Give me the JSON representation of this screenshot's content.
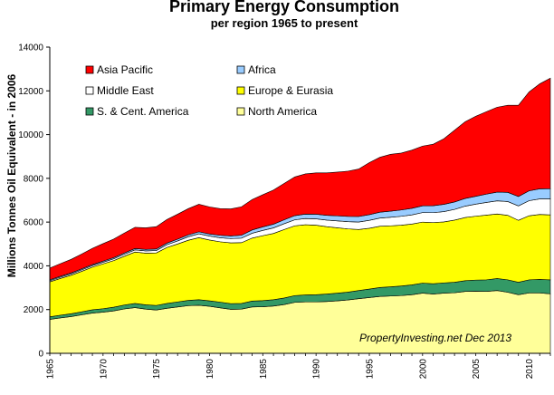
{
  "chart_data": {
    "type": "area",
    "stacked": true,
    "title": "Primary Energy Consumption",
    "subtitle": "per region 1965 to present",
    "ylabel": "Millions Tonnes Oil Equivalent  - in 2006",
    "xlabel": "",
    "ylim": [
      0,
      14000
    ],
    "yticks": [
      "0",
      "2000",
      "4000",
      "6000",
      "8000",
      "10000",
      "12000",
      "14000"
    ],
    "xlim": [
      1965,
      2012
    ],
    "xticks": [
      "1965",
      "1970",
      "1975",
      "1980",
      "1985",
      "1990",
      "1995",
      "2000",
      "2005",
      "2010"
    ],
    "grid": false,
    "legend_position": "top-left inside",
    "annotation": "PropertyInvesting.net  Dec 2013",
    "x": [
      1965,
      1966,
      1967,
      1968,
      1969,
      1970,
      1971,
      1972,
      1973,
      1974,
      1975,
      1976,
      1977,
      1978,
      1979,
      1980,
      1981,
      1982,
      1983,
      1984,
      1985,
      1986,
      1987,
      1988,
      1989,
      1990,
      1991,
      1992,
      1993,
      1994,
      1995,
      1996,
      1997,
      1998,
      1999,
      2000,
      2001,
      2002,
      2003,
      2004,
      2005,
      2006,
      2007,
      2008,
      2009,
      2010,
      2011,
      2012
    ],
    "series": [
      {
        "name": "North America",
        "color": "#ffff99",
        "values": [
          1550,
          1620,
          1680,
          1760,
          1840,
          1880,
          1940,
          2030,
          2090,
          2020,
          1980,
          2060,
          2120,
          2180,
          2200,
          2150,
          2080,
          2010,
          2020,
          2120,
          2130,
          2160,
          2230,
          2330,
          2350,
          2350,
          2370,
          2400,
          2440,
          2500,
          2550,
          2600,
          2620,
          2640,
          2680,
          2750,
          2710,
          2750,
          2770,
          2830,
          2840,
          2830,
          2870,
          2790,
          2680,
          2760,
          2760,
          2720
        ]
      },
      {
        "name": "S. & Cent. America",
        "color": "#339966",
        "values": [
          120,
          125,
          130,
          140,
          150,
          160,
          170,
          180,
          190,
          200,
          210,
          220,
          230,
          240,
          250,
          250,
          260,
          260,
          260,
          270,
          280,
          290,
          300,
          310,
          320,
          330,
          340,
          350,
          360,
          370,
          390,
          410,
          420,
          440,
          450,
          460,
          470,
          470,
          480,
          490,
          510,
          530,
          550,
          570,
          570,
          600,
          620,
          640
        ]
      },
      {
        "name": "Europe & Eurasia",
        "color": "#ffff00",
        "values": [
          1600,
          1680,
          1760,
          1850,
          1950,
          2050,
          2130,
          2230,
          2350,
          2360,
          2400,
          2560,
          2650,
          2750,
          2840,
          2780,
          2760,
          2780,
          2780,
          2880,
          2970,
          3030,
          3130,
          3190,
          3210,
          3180,
          3080,
          2990,
          2890,
          2790,
          2780,
          2800,
          2790,
          2780,
          2780,
          2790,
          2800,
          2790,
          2840,
          2890,
          2920,
          2960,
          2950,
          2950,
          2830,
          2930,
          2970,
          2970
        ]
      },
      {
        "name": "Middle East",
        "color": "#ffffff",
        "values": [
          50,
          55,
          60,
          65,
          70,
          75,
          80,
          90,
          100,
          105,
          110,
          125,
          140,
          160,
          175,
          180,
          185,
          195,
          205,
          220,
          240,
          255,
          265,
          275,
          285,
          290,
          300,
          315,
          330,
          345,
          360,
          375,
          390,
          405,
          420,
          435,
          450,
          470,
          490,
          520,
          550,
          580,
          600,
          630,
          660,
          690,
          710,
          730
        ]
      },
      {
        "name": "Africa",
        "color": "#99ccff",
        "values": [
          40,
          42,
          44,
          46,
          48,
          50,
          54,
          58,
          62,
          66,
          70,
          75,
          80,
          85,
          90,
          95,
          110,
          120,
          135,
          150,
          160,
          170,
          180,
          190,
          200,
          210,
          220,
          230,
          240,
          250,
          260,
          270,
          280,
          290,
          300,
          310,
          320,
          330,
          340,
          350,
          360,
          380,
          400,
          420,
          430,
          450,
          460,
          470
        ]
      },
      {
        "name": "Asia Pacific",
        "color": "#ff0000",
        "values": [
          540,
          580,
          620,
          680,
          740,
          800,
          850,
          910,
          970,
          990,
          1020,
          1080,
          1140,
          1200,
          1260,
          1240,
          1220,
          1240,
          1300,
          1390,
          1470,
          1560,
          1660,
          1770,
          1840,
          1890,
          1940,
          2000,
          2070,
          2170,
          2380,
          2510,
          2600,
          2600,
          2660,
          2730,
          2810,
          3000,
          3280,
          3510,
          3660,
          3770,
          3880,
          3980,
          4170,
          4520,
          4800,
          5050
        ]
      }
    ],
    "legend_layout": [
      [
        "Asia Pacific",
        "Africa"
      ],
      [
        "Middle East",
        "Europe & Eurasia"
      ],
      [
        "S. & Cent. America",
        "North America"
      ]
    ]
  }
}
